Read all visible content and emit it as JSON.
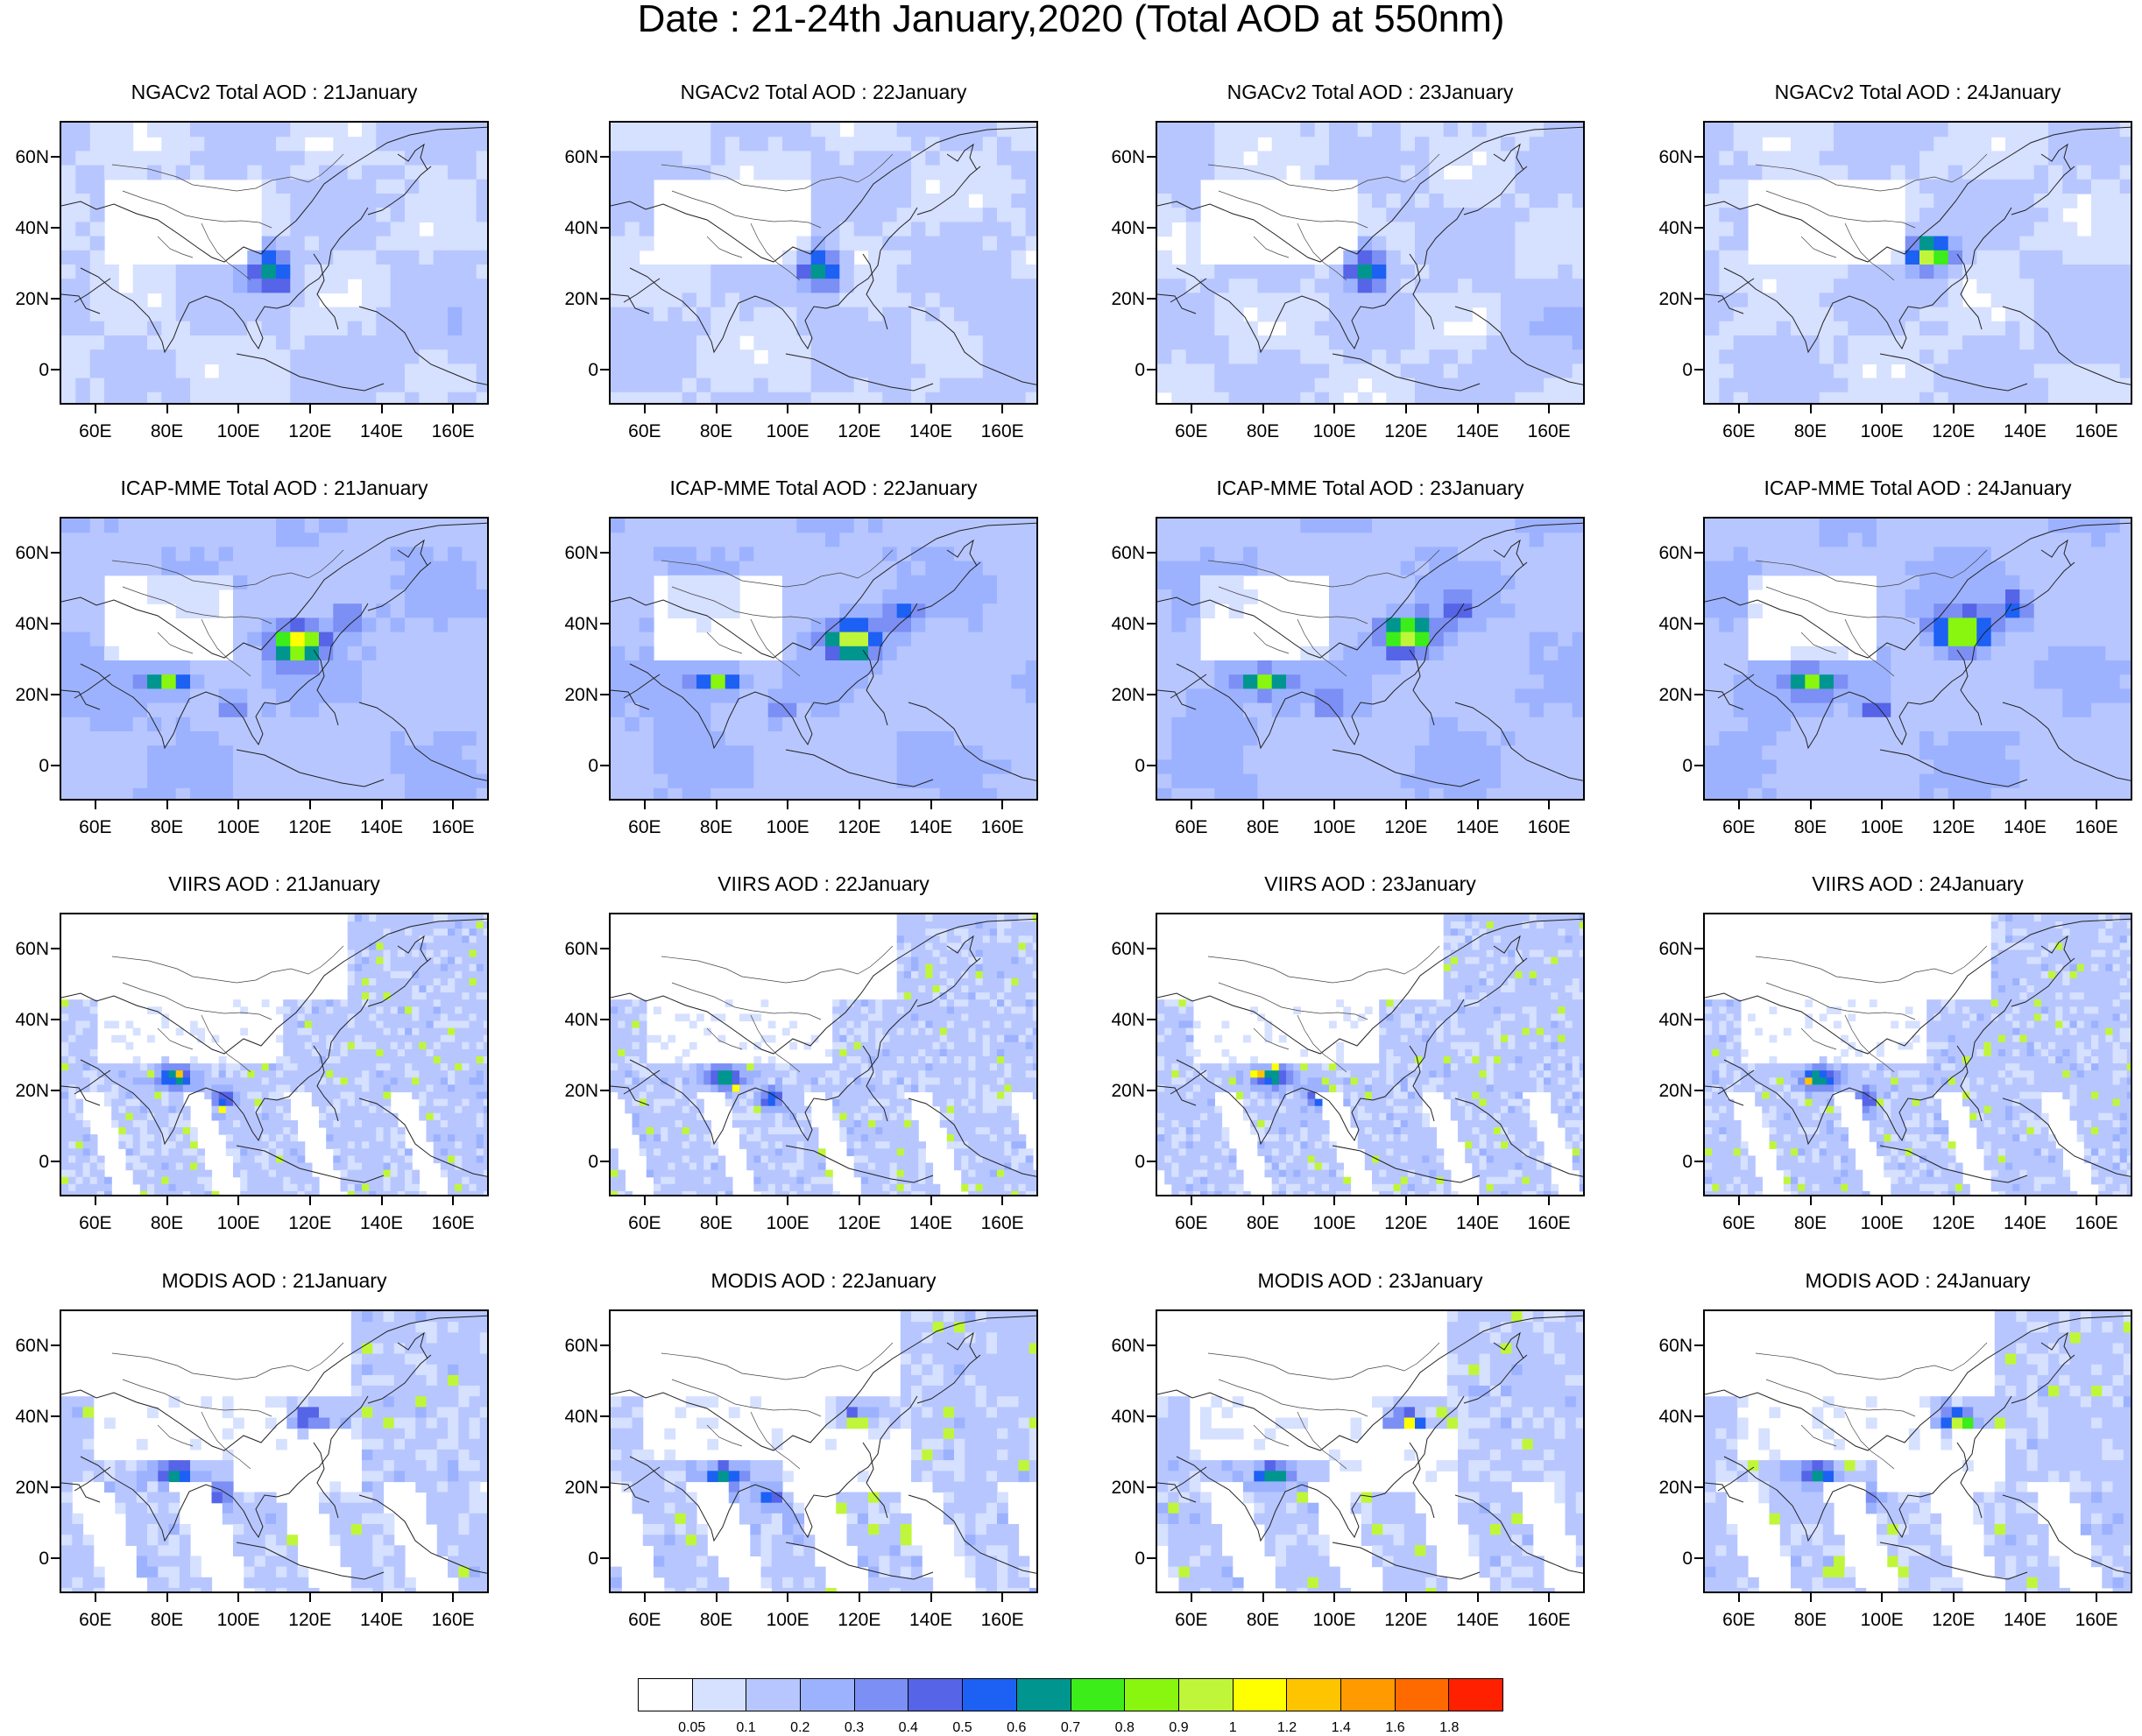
{
  "title": "Date : 21-24th January,2020 (Total AOD at 550nm)",
  "latitude_ticks": [
    "60N",
    "40N",
    "20N",
    "0"
  ],
  "latitude_values": [
    60,
    40,
    20,
    0
  ],
  "longitude_ticks": [
    "60E",
    "80E",
    "100E",
    "120E",
    "140E",
    "160E"
  ],
  "longitude_values": [
    60,
    80,
    100,
    120,
    140,
    160
  ],
  "map_extent": {
    "lon_min": 50,
    "lon_max": 170,
    "lat_min": -10,
    "lat_max": 70
  },
  "panels": [
    {
      "title": "NGACv2 Total AOD : 21January",
      "source": "ngac",
      "day": 21
    },
    {
      "title": "NGACv2 Total AOD : 22January",
      "source": "ngac",
      "day": 22
    },
    {
      "title": "NGACv2 Total AOD : 23January",
      "source": "ngac",
      "day": 23
    },
    {
      "title": "NGACv2 Total AOD : 24January",
      "source": "ngac",
      "day": 24
    },
    {
      "title": "ICAP-MME Total AOD : 21January",
      "source": "icap",
      "day": 21
    },
    {
      "title": "ICAP-MME Total AOD : 22January",
      "source": "icap",
      "day": 22
    },
    {
      "title": "ICAP-MME Total AOD : 23January",
      "source": "icap",
      "day": 23
    },
    {
      "title": "ICAP-MME Total AOD : 24January",
      "source": "icap",
      "day": 24
    },
    {
      "title": "VIIRS AOD : 21January",
      "source": "viirs",
      "day": 21
    },
    {
      "title": "VIIRS AOD : 22January",
      "source": "viirs",
      "day": 22
    },
    {
      "title": "VIIRS AOD : 23January",
      "source": "viirs",
      "day": 23
    },
    {
      "title": "VIIRS AOD : 24January",
      "source": "viirs",
      "day": 24
    },
    {
      "title": "MODIS AOD : 21January",
      "source": "modis",
      "day": 21
    },
    {
      "title": "MODIS AOD : 22January",
      "source": "modis",
      "day": 22
    },
    {
      "title": "MODIS AOD : 23January",
      "source": "modis",
      "day": 23
    },
    {
      "title": "MODIS AOD : 24January",
      "source": "modis",
      "day": 24
    }
  ],
  "colorbar": {
    "labels": [
      "0.05",
      "0.1",
      "0.2",
      "0.3",
      "0.4",
      "0.5",
      "0.6",
      "0.7",
      "0.8",
      "0.9",
      "1",
      "1.2",
      "1.4",
      "1.6",
      "1.8"
    ],
    "colors": [
      "#ffffff",
      "#d6e0ff",
      "#b7c6ff",
      "#9cb2ff",
      "#7b8ff4",
      "#5664e8",
      "#1d60f4",
      "#00968f",
      "#3ced19",
      "#88f60f",
      "#c0f63a",
      "#ffff00",
      "#ffc400",
      "#ff9a00",
      "#ff6a00",
      "#ff2000"
    ]
  }
}
